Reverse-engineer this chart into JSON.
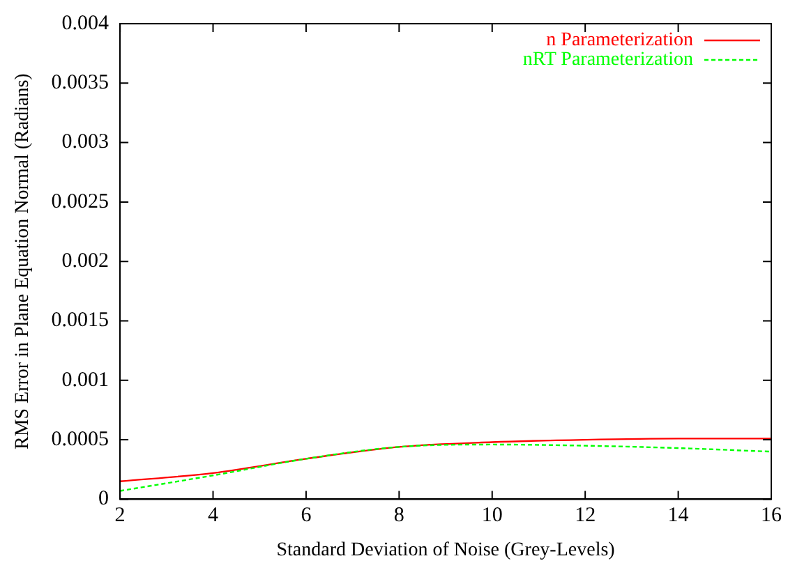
{
  "chart_data": {
    "type": "line",
    "xlabel": "Standard Deviation of Noise (Grey-Levels)",
    "ylabel": "RMS Error in Plane Equation Normal (Radians)",
    "x": [
      2,
      4,
      6,
      8,
      10,
      12,
      14,
      16
    ],
    "xlim": [
      2,
      16
    ],
    "xticks": [
      2,
      4,
      6,
      8,
      10,
      12,
      14,
      16
    ],
    "ylim": [
      0,
      0.004
    ],
    "yticks": [
      0,
      0.0005,
      0.001,
      0.0015,
      0.002,
      0.0025,
      0.003,
      0.0035,
      0.004
    ],
    "grid": false,
    "legend": "top right",
    "marker": "none",
    "series": [
      {
        "name": "n Parameterization",
        "color": "#ff0000",
        "line_style": "solid",
        "values": [
          0.00015,
          0.00022,
          0.00034,
          0.00044,
          0.00048,
          0.0005,
          0.00051,
          0.00051
        ]
      },
      {
        "name": "nRT Parameterization",
        "color": "#00ff00",
        "line_style": "dashed",
        "values": [
          7e-05,
          0.0002,
          0.00034,
          0.00044,
          0.00046,
          0.00045,
          0.00043,
          0.0004
        ]
      }
    ]
  }
}
